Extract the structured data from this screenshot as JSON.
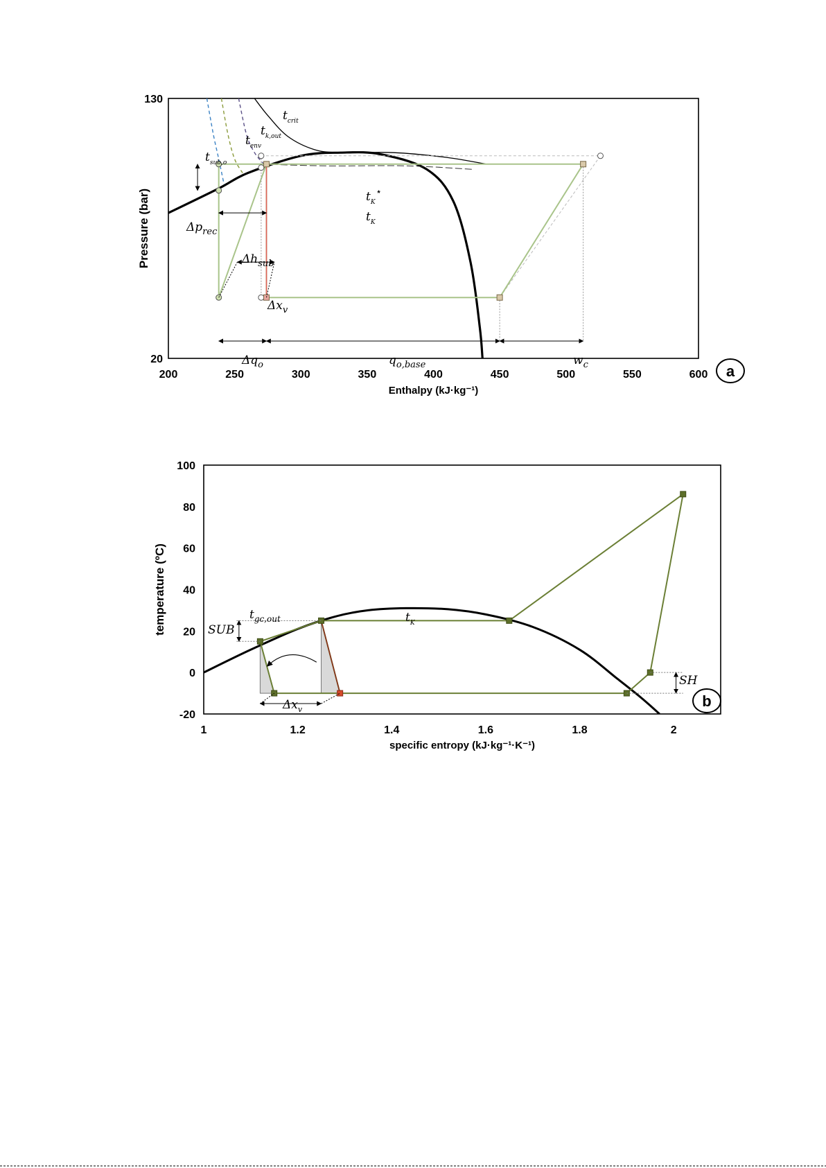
{
  "chart_data": [
    {
      "type": "line",
      "panel": "a",
      "xlabel": "Enthalpy (kJ·kg-1)",
      "ylabel": "Pressure (bar)",
      "xlim": [
        200,
        600
      ],
      "ylim": [
        20,
        130
      ],
      "y_scale": "log",
      "xticks": [
        "200",
        "250",
        "300",
        "350",
        "400",
        "450",
        "500",
        "550",
        "600"
      ],
      "yticks": [
        "20",
        "130"
      ],
      "series": [
        {
          "role": "saturation-dome",
          "x": [
            200,
            238,
            260,
            300,
            330,
            360,
            395,
            415,
            428,
            435,
            437
          ],
          "y": [
            57,
            68,
            76,
            86,
            88,
            87,
            78,
            62,
            40,
            25,
            20
          ]
        },
        {
          "role": "critical-isotherm",
          "x": [
            265,
            275,
            290,
            310,
            330,
            370,
            410,
            440
          ],
          "y": [
            130,
            115,
            99,
            90,
            88,
            88,
            85,
            81
          ]
        },
        {
          "role": "tk-isotherm",
          "x": [
            270,
            320,
            380,
            430
          ],
          "y": [
            81,
            80,
            80,
            78
          ]
        },
        {
          "role": "sub-isotherm",
          "x": [
            229,
            234,
            238,
            242
          ],
          "y": [
            130,
            100,
            84,
            70
          ]
        },
        {
          "role": "env-isotherm",
          "x": [
            240,
            245,
            250,
            256
          ],
          "y": [
            130,
            100,
            84,
            76
          ]
        },
        {
          "role": "k-out-isotherm",
          "x": [
            253,
            259,
            265,
            272
          ],
          "y": [
            130,
            100,
            88,
            81
          ]
        },
        {
          "role": "cycle-base",
          "x": [
            274,
            513,
            450,
            274,
            274
          ],
          "y": [
            81,
            81,
            31,
            31,
            81
          ]
        },
        {
          "role": "cycle-sub",
          "x": [
            238,
            274,
            238,
            238
          ],
          "y": [
            81,
            81,
            31,
            81
          ]
        },
        {
          "role": "cycle-dashed",
          "x": [
            270,
            526,
            450
          ],
          "y": [
            86,
            86,
            31
          ]
        }
      ],
      "points": [
        {
          "x": 238,
          "y": 81
        },
        {
          "x": 238,
          "y": 67
        },
        {
          "x": 238,
          "y": 31
        },
        {
          "x": 270,
          "y": 86
        },
        {
          "x": 270,
          "y": 79
        },
        {
          "x": 270,
          "y": 31
        },
        {
          "x": 274,
          "y": 81
        },
        {
          "x": 274,
          "y": 31
        },
        {
          "x": 450,
          "y": 31
        },
        {
          "x": 513,
          "y": 81
        },
        {
          "x": 526,
          "y": 86
        }
      ],
      "annotations": [
        {
          "text": "t",
          "sub": "crit"
        },
        {
          "text": "t",
          "sub": "k,out"
        },
        {
          "text": "t",
          "sub": "env"
        },
        {
          "text": "t",
          "sub": "sub,o"
        },
        {
          "text": "t",
          "sub": "K"
        },
        {
          "text": "Δp",
          "sub": "rec"
        },
        {
          "text": "Δh",
          "sub": "sub"
        },
        {
          "text": "Δx",
          "sub": "v"
        },
        {
          "text": "Δq",
          "sub": "o"
        },
        {
          "text": "q",
          "sub": "o,base"
        },
        {
          "text": "w",
          "sub": "c"
        }
      ],
      "panel_label": "a",
      "grid": false
    },
    {
      "type": "line",
      "panel": "b",
      "xlabel": "specific entropy (kJ·kg-1·K-1)",
      "ylabel": "temperature (ºC)",
      "xlim": [
        1,
        2.1
      ],
      "ylim": [
        -20,
        100
      ],
      "xticks": [
        "1",
        "1.2",
        "1.4",
        "1.6",
        "1.8",
        "2"
      ],
      "yticks": [
        "100",
        "80",
        "60",
        "40",
        "20",
        "0",
        "-20"
      ],
      "series": [
        {
          "role": "saturation-dome",
          "x": [
            1.0,
            1.1,
            1.2,
            1.28,
            1.35,
            1.43,
            1.52,
            1.6,
            1.7,
            1.8,
            1.88,
            1.93,
            1.97
          ],
          "y": [
            0,
            11,
            21,
            27,
            30,
            31,
            30.5,
            28,
            22,
            11,
            -3,
            -12,
            -20
          ]
        },
        {
          "role": "cycle",
          "x": [
            1.25,
            1.65,
            2.02,
            1.95,
            1.9,
            1.29,
            1.25,
            1.12,
            1.15,
            1.29
          ],
          "y": [
            25,
            25,
            86,
            0,
            -10,
            -10,
            25,
            15,
            -10,
            -10
          ]
        }
      ],
      "points": [
        {
          "x": 1.12,
          "y": 15
        },
        {
          "x": 1.15,
          "y": -10
        },
        {
          "x": 1.25,
          "y": 25
        },
        {
          "x": 1.29,
          "y": -10
        },
        {
          "x": 1.65,
          "y": 25
        },
        {
          "x": 1.9,
          "y": -10
        },
        {
          "x": 1.95,
          "y": 0
        },
        {
          "x": 2.02,
          "y": 86
        }
      ],
      "annotations": [
        {
          "text": "t",
          "sub": "gc,out"
        },
        {
          "text": "SUB"
        },
        {
          "text": "t",
          "sub": "K"
        },
        {
          "text": "SH"
        },
        {
          "text": "Δx",
          "sub": "v"
        }
      ],
      "panel_label": "b",
      "grid": false
    }
  ],
  "colors": {
    "dome": "#000000",
    "cycle_a": "#a9c48a",
    "cycle_b": "#6b7f35",
    "expansion": "#e0625a",
    "sub_dash": "#3b82c4",
    "env_dash": "#8a9a3a",
    "kout_dash": "#5a4f86"
  }
}
